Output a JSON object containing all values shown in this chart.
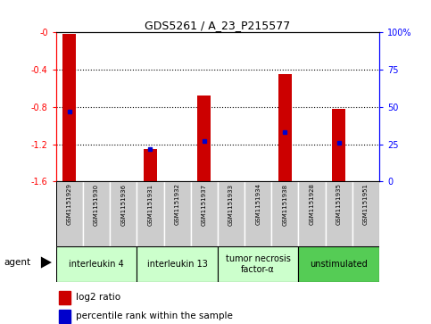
{
  "title": "GDS5261 / A_23_P215577",
  "samples": [
    "GSM1151929",
    "GSM1151930",
    "GSM1151936",
    "GSM1151931",
    "GSM1151932",
    "GSM1151937",
    "GSM1151933",
    "GSM1151934",
    "GSM1151938",
    "GSM1151928",
    "GSM1151935",
    "GSM1151951"
  ],
  "log2_ratio": [
    -0.02,
    0,
    0,
    -1.25,
    0,
    -0.68,
    0,
    0,
    -0.45,
    0,
    -0.82,
    0
  ],
  "percentile_rank": [
    47,
    0,
    0,
    22,
    0,
    27,
    0,
    0,
    33,
    0,
    26,
    0
  ],
  "ylim": [
    -1.6,
    0.0
  ],
  "yticks_left": [
    -1.6,
    -1.2,
    -0.8,
    -0.4,
    0.0
  ],
  "yticks_left_labels": [
    "-1.6",
    "-1.2",
    "-0.8",
    "-0.4",
    "-0"
  ],
  "yticks_right": [
    0,
    25,
    50,
    75,
    100
  ],
  "yticks_right_labels": [
    "0",
    "25",
    "50",
    "75",
    "100%"
  ],
  "agent_groups": [
    {
      "label": "interleukin 4",
      "start": 0,
      "end": 3,
      "color": "#ccffcc"
    },
    {
      "label": "interleukin 13",
      "start": 3,
      "end": 6,
      "color": "#ccffcc"
    },
    {
      "label": "tumor necrosis\nfactor-α",
      "start": 6,
      "end": 9,
      "color": "#ccffcc"
    },
    {
      "label": "unstimulated",
      "start": 9,
      "end": 12,
      "color": "#55cc55"
    }
  ],
  "bar_color": "#cc0000",
  "percentile_color": "#0000cc",
  "grid_color": "#000000",
  "background_color": "#ffffff",
  "sample_box_color": "#cccccc",
  "bar_width": 0.5
}
